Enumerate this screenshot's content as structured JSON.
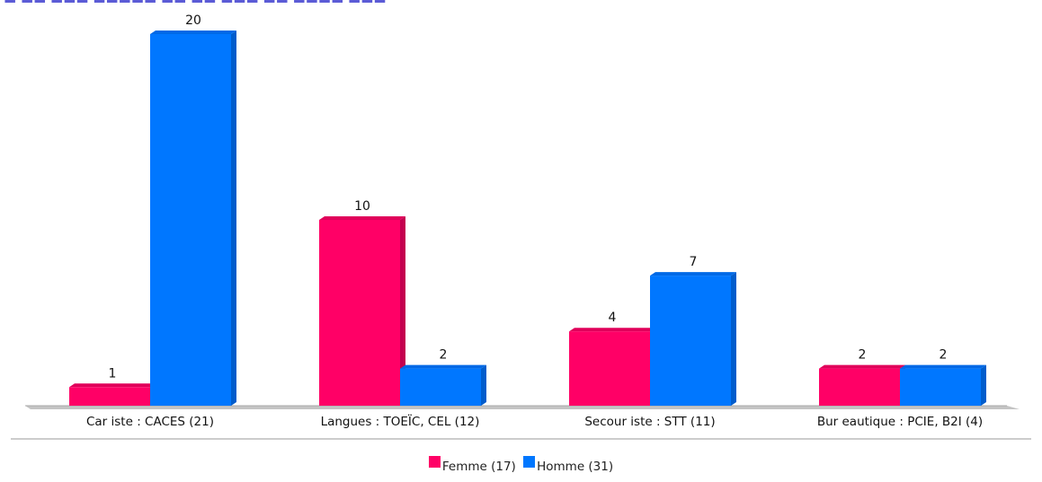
{
  "chart_data": {
    "type": "bar",
    "title": "",
    "categories": [
      "Car iste : CACES (21)",
      "Langues : TOEÏC, CEL (12)",
      "Secour iste : STT (11)",
      "Bur eautique : PCIE, B2I (4)"
    ],
    "series": [
      {
        "name": "Femme (17)",
        "color": "#ff0066",
        "values": [
          1,
          10,
          4,
          2
        ]
      },
      {
        "name": "Homme (31)",
        "color": "#0077ff",
        "values": [
          20,
          2,
          7,
          2
        ]
      }
    ],
    "ylim": [
      0,
      20
    ],
    "grid": false,
    "legend": "bottom",
    "data_labels": true,
    "style": "3d"
  }
}
